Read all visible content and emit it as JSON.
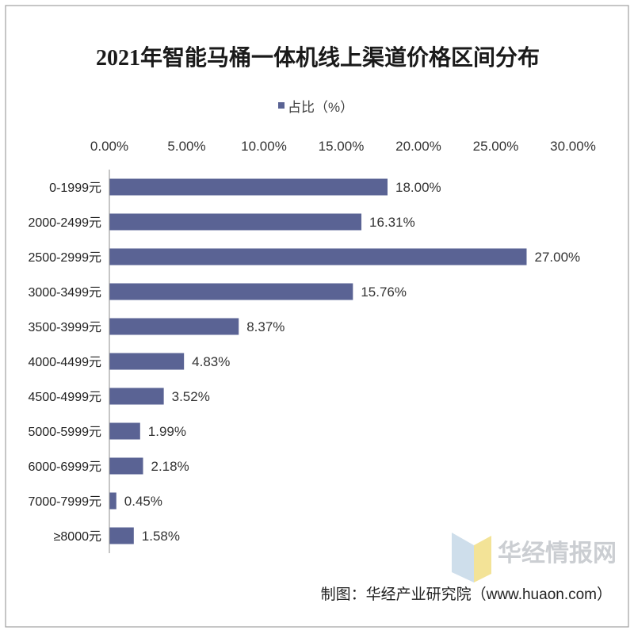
{
  "chart_data": {
    "type": "bar",
    "orientation": "horizontal",
    "title": "2021年智能马桶一体机线上渠道价格区间分布",
    "categories": [
      "0-1999元",
      "2000-2499元",
      "2500-2999元",
      "3000-3499元",
      "3500-3999元",
      "4000-4499元",
      "4500-4999元",
      "5000-5999元",
      "6000-6999元",
      "7000-7999元",
      "≥8000元"
    ],
    "series": [
      {
        "name": "占比（%）",
        "values": [
          18.0,
          16.31,
          27.0,
          15.76,
          8.37,
          4.83,
          3.52,
          1.99,
          2.18,
          0.45,
          1.58
        ],
        "labels": [
          "18.00%",
          "16.31%",
          "27.00%",
          "15.76%",
          "8.37%",
          "4.83%",
          "3.52%",
          "1.99%",
          "2.18%",
          "0.45%",
          "1.58%"
        ],
        "color": "#5a6394"
      }
    ],
    "xlim": [
      0,
      30
    ],
    "x_ticks": [
      0,
      5,
      10,
      15,
      20,
      25,
      30
    ],
    "x_tick_labels": [
      "0.00%",
      "5.00%",
      "10.00%",
      "15.00%",
      "20.00%",
      "25.00%",
      "30.00%"
    ],
    "value_axis_position": "top",
    "legend": {
      "position": "top",
      "swatch_color": "#5a6394"
    },
    "grid": false
  },
  "source": "制图：华经产业研究院（www.huaon.com）",
  "watermark": {
    "text": "华经情报网",
    "logo_colors": [
      "#c6d9e8",
      "#f2df86"
    ]
  }
}
